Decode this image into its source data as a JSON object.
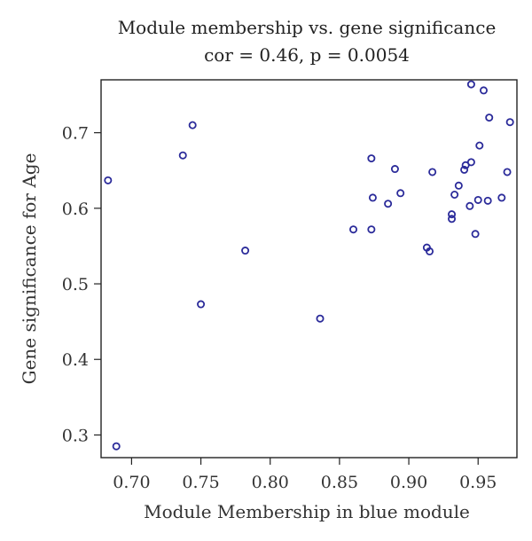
{
  "chart_data": {
    "type": "scatter",
    "title": "Module membership vs. gene significance",
    "subtitle": "cor = 0.46, p = 0.0054",
    "xlabel": "Module Membership in blue module",
    "ylabel": "Gene significance for Age",
    "xlim": [
      0.678,
      0.978
    ],
    "ylim": [
      0.27,
      0.77
    ],
    "xticks": [
      "0.70",
      "0.75",
      "0.80",
      "0.85",
      "0.90",
      "0.95"
    ],
    "yticks": [
      "0.3",
      "0.4",
      "0.5",
      "0.6",
      "0.7"
    ],
    "grid": false,
    "marker_color": "#2b2b9a",
    "points": [
      {
        "x": 0.683,
        "y": 0.637
      },
      {
        "x": 0.689,
        "y": 0.285
      },
      {
        "x": 0.737,
        "y": 0.67
      },
      {
        "x": 0.744,
        "y": 0.71
      },
      {
        "x": 0.75,
        "y": 0.473
      },
      {
        "x": 0.782,
        "y": 0.544
      },
      {
        "x": 0.836,
        "y": 0.454
      },
      {
        "x": 0.86,
        "y": 0.572
      },
      {
        "x": 0.873,
        "y": 0.666
      },
      {
        "x": 0.874,
        "y": 0.614
      },
      {
        "x": 0.873,
        "y": 0.572
      },
      {
        "x": 0.885,
        "y": 0.606
      },
      {
        "x": 0.89,
        "y": 0.652
      },
      {
        "x": 0.894,
        "y": 0.62
      },
      {
        "x": 0.913,
        "y": 0.548
      },
      {
        "x": 0.915,
        "y": 0.543
      },
      {
        "x": 0.917,
        "y": 0.648
      },
      {
        "x": 0.931,
        "y": 0.586
      },
      {
        "x": 0.931,
        "y": 0.592
      },
      {
        "x": 0.933,
        "y": 0.618
      },
      {
        "x": 0.936,
        "y": 0.63
      },
      {
        "x": 0.94,
        "y": 0.651
      },
      {
        "x": 0.941,
        "y": 0.657
      },
      {
        "x": 0.944,
        "y": 0.603
      },
      {
        "x": 0.945,
        "y": 0.661
      },
      {
        "x": 0.945,
        "y": 0.764
      },
      {
        "x": 0.948,
        "y": 0.566
      },
      {
        "x": 0.95,
        "y": 0.611
      },
      {
        "x": 0.951,
        "y": 0.683
      },
      {
        "x": 0.954,
        "y": 0.756
      },
      {
        "x": 0.957,
        "y": 0.61
      },
      {
        "x": 0.958,
        "y": 0.72
      },
      {
        "x": 0.967,
        "y": 0.614
      },
      {
        "x": 0.971,
        "y": 0.648
      },
      {
        "x": 0.973,
        "y": 0.714
      }
    ]
  }
}
